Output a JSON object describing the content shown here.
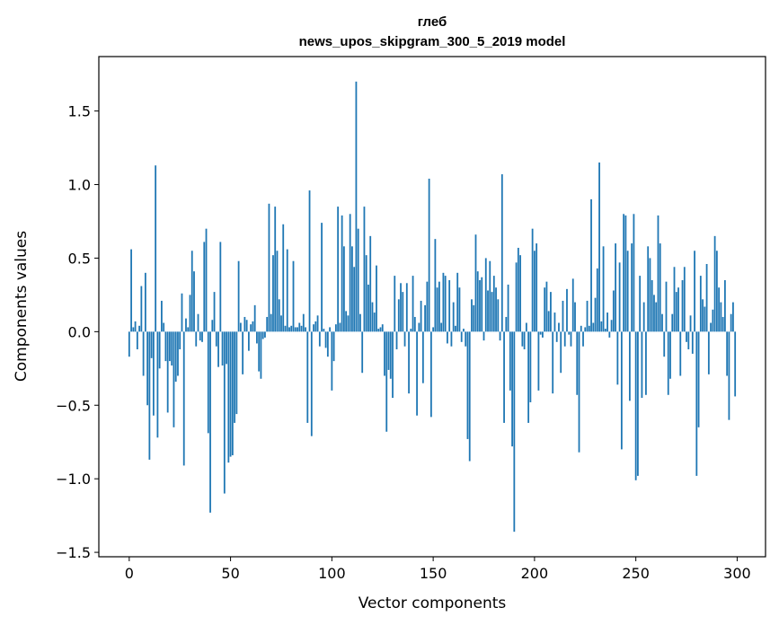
{
  "chart_data": {
    "type": "bar",
    "title_line1": "глеб",
    "title_line2": "news_upos_skipgram_300_5_2019 model",
    "xlabel": "Vector components",
    "ylabel": "Components values",
    "xlim": [
      -15,
      314
    ],
    "ylim": [
      -1.53,
      1.87
    ],
    "xticks": [
      0,
      50,
      100,
      150,
      200,
      250,
      300
    ],
    "xtick_labels": [
      "0",
      "50",
      "100",
      "150",
      "200",
      "250",
      "300"
    ],
    "yticks": [
      -1.5,
      -1.0,
      -0.5,
      0.0,
      0.5,
      1.0,
      1.5
    ],
    "ytick_labels": [
      "−1.5",
      "−1.0",
      "−0.5",
      "0.0",
      "0.5",
      "1.0",
      "1.5"
    ],
    "bar_color": "#1f77b4",
    "keypoints": [
      [
        0,
        -0.17
      ],
      [
        1,
        0.56
      ],
      [
        2,
        0.03
      ],
      [
        3,
        0.07
      ],
      [
        4,
        -0.12
      ],
      [
        5,
        0.04
      ],
      [
        6,
        0.31
      ],
      [
        7,
        -0.3
      ],
      [
        8,
        0.4
      ],
      [
        9,
        -0.5
      ],
      [
        10,
        -0.87
      ],
      [
        11,
        -0.18
      ],
      [
        12,
        -0.57
      ],
      [
        13,
        1.13
      ],
      [
        14,
        -0.72
      ],
      [
        15,
        -0.25
      ],
      [
        16,
        0.21
      ],
      [
        17,
        0.06
      ],
      [
        18,
        -0.2
      ],
      [
        19,
        -0.55
      ],
      [
        20,
        -0.2
      ],
      [
        21,
        -0.23
      ],
      [
        22,
        -0.65
      ],
      [
        23,
        -0.34
      ],
      [
        24,
        -0.3
      ],
      [
        25,
        -0.12
      ],
      [
        26,
        0.26
      ],
      [
        27,
        -0.91
      ],
      [
        28,
        0.09
      ],
      [
        29,
        0.03
      ],
      [
        30,
        0.25
      ],
      [
        31,
        0.55
      ],
      [
        32,
        0.41
      ],
      [
        33,
        -0.1
      ],
      [
        34,
        0.12
      ],
      [
        35,
        -0.06
      ],
      [
        36,
        -0.07
      ],
      [
        37,
        0.61
      ],
      [
        38,
        0.7
      ],
      [
        39,
        -0.69
      ],
      [
        40,
        -1.23
      ],
      [
        41,
        0.08
      ],
      [
        42,
        0.27
      ],
      [
        43,
        -0.1
      ],
      [
        44,
        -0.24
      ],
      [
        45,
        0.61
      ],
      [
        46,
        -0.23
      ],
      [
        47,
        -1.1
      ],
      [
        48,
        -0.22
      ],
      [
        49,
        -0.89
      ],
      [
        50,
        -0.85
      ],
      [
        51,
        -0.84
      ],
      [
        52,
        -0.62
      ],
      [
        53,
        -0.56
      ],
      [
        54,
        0.48
      ],
      [
        55,
        0.06
      ],
      [
        56,
        -0.29
      ],
      [
        57,
        0.1
      ],
      [
        58,
        0.08
      ],
      [
        59,
        -0.13
      ],
      [
        60,
        0.05
      ],
      [
        61,
        0.07
      ],
      [
        62,
        0.18
      ],
      [
        63,
        -0.08
      ],
      [
        64,
        -0.27
      ],
      [
        65,
        -0.32
      ],
      [
        66,
        -0.05
      ],
      [
        67,
        -0.04
      ],
      [
        68,
        0.1
      ],
      [
        69,
        0.87
      ],
      [
        70,
        0.12
      ],
      [
        71,
        0.52
      ],
      [
        72,
        0.85
      ],
      [
        73,
        0.55
      ],
      [
        74,
        0.22
      ],
      [
        75,
        0.11
      ],
      [
        76,
        0.73
      ],
      [
        77,
        0.04
      ],
      [
        78,
        0.56
      ],
      [
        79,
        0.03
      ],
      [
        80,
        0.04
      ],
      [
        81,
        0.48
      ],
      [
        82,
        0.03
      ],
      [
        83,
        0.03
      ],
      [
        84,
        0.06
      ],
      [
        85,
        0.04
      ],
      [
        86,
        0.12
      ],
      [
        87,
        0.03
      ],
      [
        88,
        -0.62
      ],
      [
        89,
        0.96
      ],
      [
        90,
        -0.71
      ],
      [
        91,
        0.05
      ],
      [
        92,
        0.07
      ],
      [
        93,
        0.11
      ],
      [
        94,
        -0.1
      ],
      [
        95,
        0.74
      ],
      [
        96,
        0.02
      ],
      [
        97,
        -0.11
      ],
      [
        98,
        -0.17
      ],
      [
        99,
        0.03
      ],
      [
        100,
        -0.4
      ],
      [
        101,
        -0.2
      ],
      [
        102,
        0.05
      ],
      [
        103,
        0.85
      ],
      [
        104,
        0.06
      ],
      [
        105,
        0.79
      ],
      [
        106,
        0.58
      ],
      [
        107,
        0.14
      ],
      [
        108,
        0.11
      ],
      [
        109,
        0.8
      ],
      [
        110,
        0.58
      ],
      [
        111,
        0.44
      ],
      [
        112,
        1.7
      ],
      [
        113,
        0.7
      ],
      [
        114,
        0.12
      ],
      [
        115,
        -0.28
      ],
      [
        116,
        0.85
      ],
      [
        117,
        0.52
      ],
      [
        118,
        0.32
      ],
      [
        119,
        0.65
      ],
      [
        120,
        0.2
      ],
      [
        121,
        0.13
      ],
      [
        122,
        0.45
      ],
      [
        123,
        0.02
      ],
      [
        124,
        0.03
      ],
      [
        125,
        0.05
      ],
      [
        126,
        -0.3
      ],
      [
        127,
        -0.68
      ],
      [
        128,
        -0.26
      ],
      [
        129,
        -0.32
      ],
      [
        130,
        -0.45
      ],
      [
        131,
        0.38
      ],
      [
        132,
        -0.12
      ],
      [
        133,
        0.22
      ],
      [
        134,
        0.33
      ],
      [
        135,
        0.27
      ],
      [
        136,
        -0.1
      ],
      [
        137,
        0.33
      ],
      [
        138,
        -0.42
      ],
      [
        139,
        0.02
      ],
      [
        140,
        0.38
      ],
      [
        141,
        0.1
      ],
      [
        142,
        -0.57
      ],
      [
        143,
        0.06
      ],
      [
        144,
        0.21
      ],
      [
        145,
        -0.35
      ],
      [
        146,
        0.18
      ],
      [
        147,
        0.34
      ],
      [
        148,
        1.04
      ],
      [
        149,
        -0.58
      ],
      [
        150,
        0.03
      ],
      [
        151,
        0.63
      ],
      [
        152,
        0.3
      ],
      [
        153,
        0.34
      ],
      [
        154,
        0.06
      ],
      [
        155,
        0.4
      ],
      [
        156,
        0.38
      ],
      [
        157,
        -0.08
      ],
      [
        158,
        0.35
      ],
      [
        159,
        -0.1
      ],
      [
        160,
        0.2
      ],
      [
        161,
        0.04
      ],
      [
        162,
        0.4
      ],
      [
        163,
        0.3
      ],
      [
        164,
        -0.07
      ],
      [
        165,
        0.02
      ],
      [
        166,
        -0.1
      ],
      [
        167,
        -0.73
      ],
      [
        168,
        -0.88
      ],
      [
        169,
        0.22
      ],
      [
        170,
        0.18
      ],
      [
        171,
        0.66
      ],
      [
        172,
        0.41
      ],
      [
        173,
        0.35
      ],
      [
        174,
        0.37
      ],
      [
        175,
        -0.06
      ],
      [
        176,
        0.5
      ],
      [
        177,
        0.28
      ],
      [
        178,
        0.48
      ],
      [
        179,
        0.27
      ],
      [
        180,
        0.38
      ],
      [
        181,
        0.3
      ],
      [
        182,
        0.22
      ],
      [
        183,
        -0.06
      ],
      [
        184,
        1.07
      ],
      [
        185,
        -0.62
      ],
      [
        186,
        0.1
      ],
      [
        187,
        0.32
      ],
      [
        188,
        -0.4
      ],
      [
        189,
        -0.78
      ],
      [
        190,
        -1.36
      ],
      [
        191,
        0.47
      ],
      [
        192,
        0.57
      ],
      [
        193,
        0.52
      ],
      [
        194,
        -0.1
      ],
      [
        195,
        -0.12
      ],
      [
        196,
        0.06
      ],
      [
        197,
        -0.62
      ],
      [
        198,
        -0.48
      ],
      [
        199,
        0.7
      ],
      [
        200,
        0.55
      ],
      [
        201,
        0.6
      ],
      [
        202,
        -0.4
      ],
      [
        203,
        -0.02
      ],
      [
        204,
        -0.04
      ],
      [
        205,
        0.3
      ],
      [
        206,
        0.34
      ],
      [
        207,
        0.14
      ],
      [
        208,
        0.27
      ],
      [
        209,
        -0.42
      ],
      [
        210,
        0.13
      ],
      [
        211,
        -0.07
      ],
      [
        212,
        0.06
      ],
      [
        213,
        -0.28
      ],
      [
        214,
        0.21
      ],
      [
        215,
        -0.1
      ],
      [
        216,
        0.29
      ],
      [
        217,
        -0.02
      ],
      [
        218,
        -0.1
      ],
      [
        219,
        0.36
      ],
      [
        220,
        0.2
      ],
      [
        221,
        -0.43
      ],
      [
        222,
        -0.82
      ],
      [
        223,
        0.04
      ],
      [
        224,
        -0.1
      ],
      [
        225,
        0.03
      ],
      [
        226,
        0.21
      ],
      [
        227,
        0.04
      ],
      [
        228,
        0.9
      ],
      [
        229,
        0.06
      ],
      [
        230,
        0.23
      ],
      [
        231,
        0.43
      ],
      [
        232,
        1.15
      ],
      [
        233,
        0.07
      ],
      [
        234,
        0.58
      ],
      [
        235,
        0.02
      ],
      [
        236,
        0.13
      ],
      [
        237,
        -0.04
      ],
      [
        238,
        0.08
      ],
      [
        239,
        0.28
      ],
      [
        240,
        0.6
      ],
      [
        241,
        -0.36
      ],
      [
        242,
        0.47
      ],
      [
        243,
        -0.8
      ],
      [
        244,
        0.8
      ],
      [
        245,
        0.79
      ],
      [
        246,
        0.55
      ],
      [
        247,
        -0.47
      ],
      [
        248,
        0.6
      ],
      [
        249,
        0.8
      ],
      [
        250,
        -1.01
      ],
      [
        251,
        -0.98
      ],
      [
        252,
        0.38
      ],
      [
        253,
        -0.45
      ],
      [
        254,
        0.2
      ],
      [
        255,
        -0.43
      ],
      [
        256,
        0.58
      ],
      [
        257,
        0.5
      ],
      [
        258,
        0.35
      ],
      [
        259,
        0.25
      ],
      [
        260,
        0.2
      ],
      [
        261,
        0.79
      ],
      [
        262,
        0.6
      ],
      [
        263,
        0.12
      ],
      [
        264,
        -0.17
      ],
      [
        265,
        0.34
      ],
      [
        266,
        -0.43
      ],
      [
        267,
        -0.32
      ],
      [
        268,
        0.12
      ],
      [
        269,
        0.44
      ],
      [
        270,
        0.27
      ],
      [
        271,
        0.3
      ],
      [
        272,
        -0.3
      ],
      [
        273,
        0.35
      ],
      [
        274,
        0.44
      ],
      [
        275,
        -0.07
      ],
      [
        276,
        -0.12
      ],
      [
        277,
        0.11
      ],
      [
        278,
        -0.15
      ],
      [
        279,
        0.55
      ],
      [
        280,
        -0.98
      ],
      [
        281,
        -0.65
      ],
      [
        282,
        0.38
      ],
      [
        283,
        0.22
      ],
      [
        284,
        0.17
      ],
      [
        285,
        0.46
      ],
      [
        286,
        -0.29
      ],
      [
        287,
        0.06
      ],
      [
        288,
        0.15
      ],
      [
        289,
        0.65
      ],
      [
        290,
        0.55
      ],
      [
        291,
        0.3
      ],
      [
        292,
        0.2
      ],
      [
        293,
        0.1
      ],
      [
        294,
        0.35
      ],
      [
        295,
        -0.3
      ],
      [
        296,
        -0.6
      ],
      [
        297,
        0.12
      ],
      [
        298,
        0.2
      ],
      [
        299,
        -0.44
      ]
    ]
  }
}
